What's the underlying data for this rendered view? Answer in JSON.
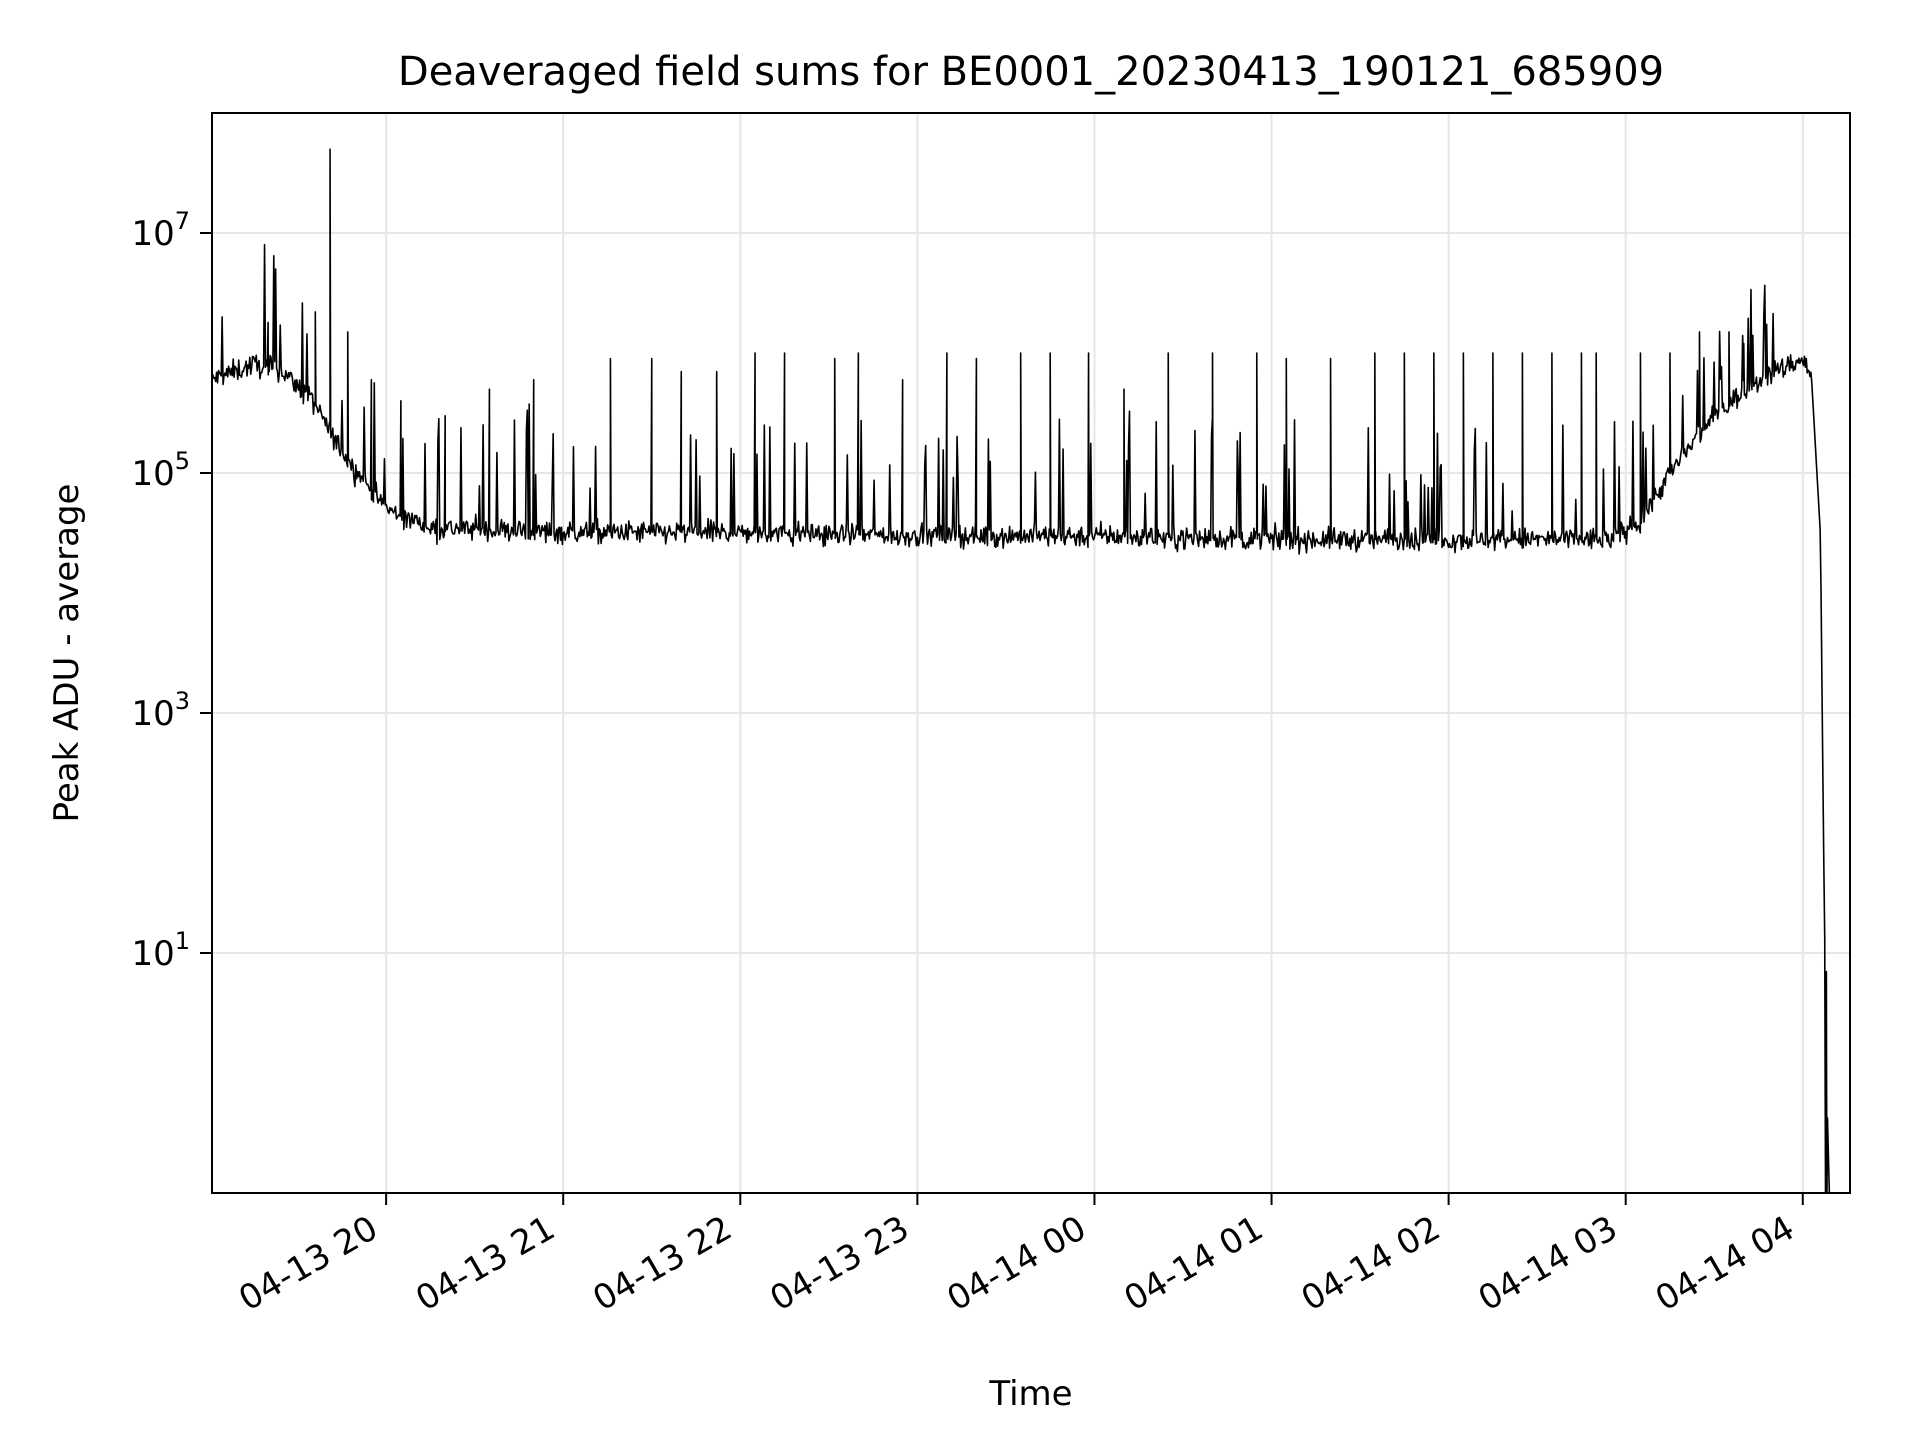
{
  "chart_data": {
    "type": "line",
    "title": "Deaveraged field sums for BE0001_20230413_190121_685909",
    "xlabel": "Time",
    "ylabel": "Peak ADU - average",
    "yscale": "log",
    "xlim": [
      "2023-04-13 19:01",
      "2023-04-14 04:16"
    ],
    "ylim": [
      0.1,
      100000000
    ],
    "x_ticks": [
      {
        "t": "2023-04-13 20:00",
        "label": "04-13 20"
      },
      {
        "t": "2023-04-13 21:00",
        "label": "04-13 21"
      },
      {
        "t": "2023-04-13 22:00",
        "label": "04-13 22"
      },
      {
        "t": "2023-04-13 23:00",
        "label": "04-13 23"
      },
      {
        "t": "2023-04-14 00:00",
        "label": "04-14 00"
      },
      {
        "t": "2023-04-14 01:00",
        "label": "04-14 01"
      },
      {
        "t": "2023-04-14 02:00",
        "label": "04-14 02"
      },
      {
        "t": "2023-04-14 03:00",
        "label": "04-14 03"
      },
      {
        "t": "2023-04-14 04:00",
        "label": "04-14 04"
      }
    ],
    "y_ticks": [
      {
        "value": 10,
        "base": "10",
        "exp": "1"
      },
      {
        "value": 1000,
        "base": "10",
        "exp": "3"
      },
      {
        "value": 100000,
        "base": "10",
        "exp": "5"
      },
      {
        "value": 10000000,
        "base": "10",
        "exp": "7"
      }
    ],
    "grid": true,
    "line_color": "#000000",
    "grid_color": "#e6e6e6",
    "series": [
      {
        "baseline": [
          [
            "2023-04-13 19:01",
            600000
          ],
          [
            "2023-04-13 19:15",
            800000
          ],
          [
            "2023-04-13 19:25",
            700000
          ],
          [
            "2023-04-13 19:35",
            400000
          ],
          [
            "2023-04-13 19:45",
            150000
          ],
          [
            "2023-04-13 20:00",
            50000
          ],
          [
            "2023-04-13 20:15",
            35000
          ],
          [
            "2023-04-13 21:00",
            32000
          ],
          [
            "2023-04-13 22:00",
            32000
          ],
          [
            "2023-04-13 23:00",
            30000
          ],
          [
            "2023-04-14 00:00",
            30000
          ],
          [
            "2023-04-14 01:00",
            28000
          ],
          [
            "2023-04-14 02:00",
            28000
          ],
          [
            "2023-04-14 02:55",
            28000
          ],
          [
            "2023-04-14 03:05",
            40000
          ],
          [
            "2023-04-14 03:15",
            100000
          ],
          [
            "2023-04-14 03:30",
            300000
          ],
          [
            "2023-04-14 03:45",
            600000
          ],
          [
            "2023-04-14 04:00",
            900000
          ],
          [
            "2023-04-14 04:03",
            600000
          ],
          [
            "2023-04-14 04:06",
            30000
          ],
          [
            "2023-04-14 04:07",
            100
          ],
          [
            "2023-04-14 04:08",
            1
          ],
          [
            "2023-04-14 04:09",
            0.1
          ]
        ],
        "spikes": [
          [
            "2023-04-13 19:20",
            1800000
          ],
          [
            "2023-04-13 19:36",
            2200000
          ],
          [
            "2023-04-13 19:41",
            50000000
          ],
          [
            "2023-04-13 19:47",
            1500000
          ],
          [
            "2023-04-13 19:55",
            600000
          ],
          [
            "2023-04-13 20:05",
            400000
          ],
          [
            "2023-04-13 20:20",
            300000
          ],
          [
            "2023-04-13 20:35",
            500000
          ],
          [
            "2023-04-13 20:50",
            600000
          ],
          [
            "2023-04-13 21:16",
            900000
          ],
          [
            "2023-04-13 21:30",
            900000
          ],
          [
            "2023-04-13 21:40",
            700000
          ],
          [
            "2023-04-13 21:52",
            700000
          ],
          [
            "2023-04-13 22:05",
            1000000
          ],
          [
            "2023-04-13 22:15",
            1000000
          ],
          [
            "2023-04-13 22:32",
            900000
          ],
          [
            "2023-04-13 22:40",
            1000000
          ],
          [
            "2023-04-13 22:55",
            600000
          ],
          [
            "2023-04-13 23:10",
            1000000
          ],
          [
            "2023-04-13 23:20",
            900000
          ],
          [
            "2023-04-13 23:35",
            1000000
          ],
          [
            "2023-04-13 23:45",
            1000000
          ],
          [
            "2023-04-13 23:58",
            1000000
          ],
          [
            "2023-04-14 00:10",
            500000
          ],
          [
            "2023-04-14 00:25",
            1000000
          ],
          [
            "2023-04-14 00:40",
            1000000
          ],
          [
            "2023-04-14 00:55",
            1000000
          ],
          [
            "2023-04-14 01:05",
            900000
          ],
          [
            "2023-04-14 01:20",
            900000
          ],
          [
            "2023-04-14 01:35",
            1000000
          ],
          [
            "2023-04-14 01:45",
            1000000
          ],
          [
            "2023-04-14 01:55",
            1000000
          ],
          [
            "2023-04-14 02:05",
            1000000
          ],
          [
            "2023-04-14 02:15",
            1000000
          ],
          [
            "2023-04-14 02:25",
            1000000
          ],
          [
            "2023-04-14 02:35",
            1000000
          ],
          [
            "2023-04-14 02:45",
            1000000
          ],
          [
            "2023-04-14 02:50",
            1000000
          ],
          [
            "2023-04-14 03:05",
            1000000
          ],
          [
            "2023-04-14 03:15",
            1000000
          ],
          [
            "2023-04-14 03:25",
            1500000
          ],
          [
            "2023-04-14 03:35",
            1500000
          ],
          [
            "2023-04-14 03:40",
            1200000
          ]
        ],
        "spike_rate_per_minute": 3.2,
        "noise_dex": 0.09,
        "tail_spike": [
          "2023-04-14 04:08",
          7
        ]
      }
    ]
  }
}
